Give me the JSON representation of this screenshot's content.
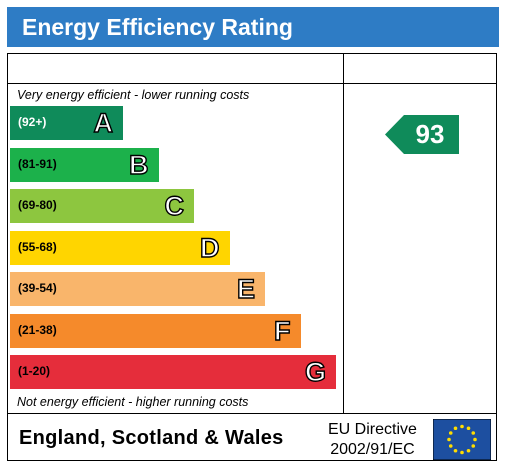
{
  "title": "Energy Efficiency Rating",
  "top_caption": "Very energy efficient - lower running costs",
  "bottom_caption": "Not energy efficient - higher running costs",
  "footer": {
    "country": "England, Scotland & Wales",
    "directive_line1": "EU Directive",
    "directive_line2": "2002/91/EC",
    "flag_icon": "eu-flag-icon"
  },
  "chart_data": {
    "type": "bar",
    "categories": [
      "A",
      "B",
      "C",
      "D",
      "E",
      "F",
      "G"
    ],
    "ranges": [
      "(92+)",
      "(81-91)",
      "(69-80)",
      "(55-68)",
      "(39-54)",
      "(21-38)",
      "(1-20)"
    ],
    "colors": [
      "#0f8b5a",
      "#1cb14b",
      "#8dc63f",
      "#ffd500",
      "#f9b56b",
      "#f58a2b",
      "#e52d3b"
    ],
    "current_rating": 93,
    "current_band": "A"
  }
}
